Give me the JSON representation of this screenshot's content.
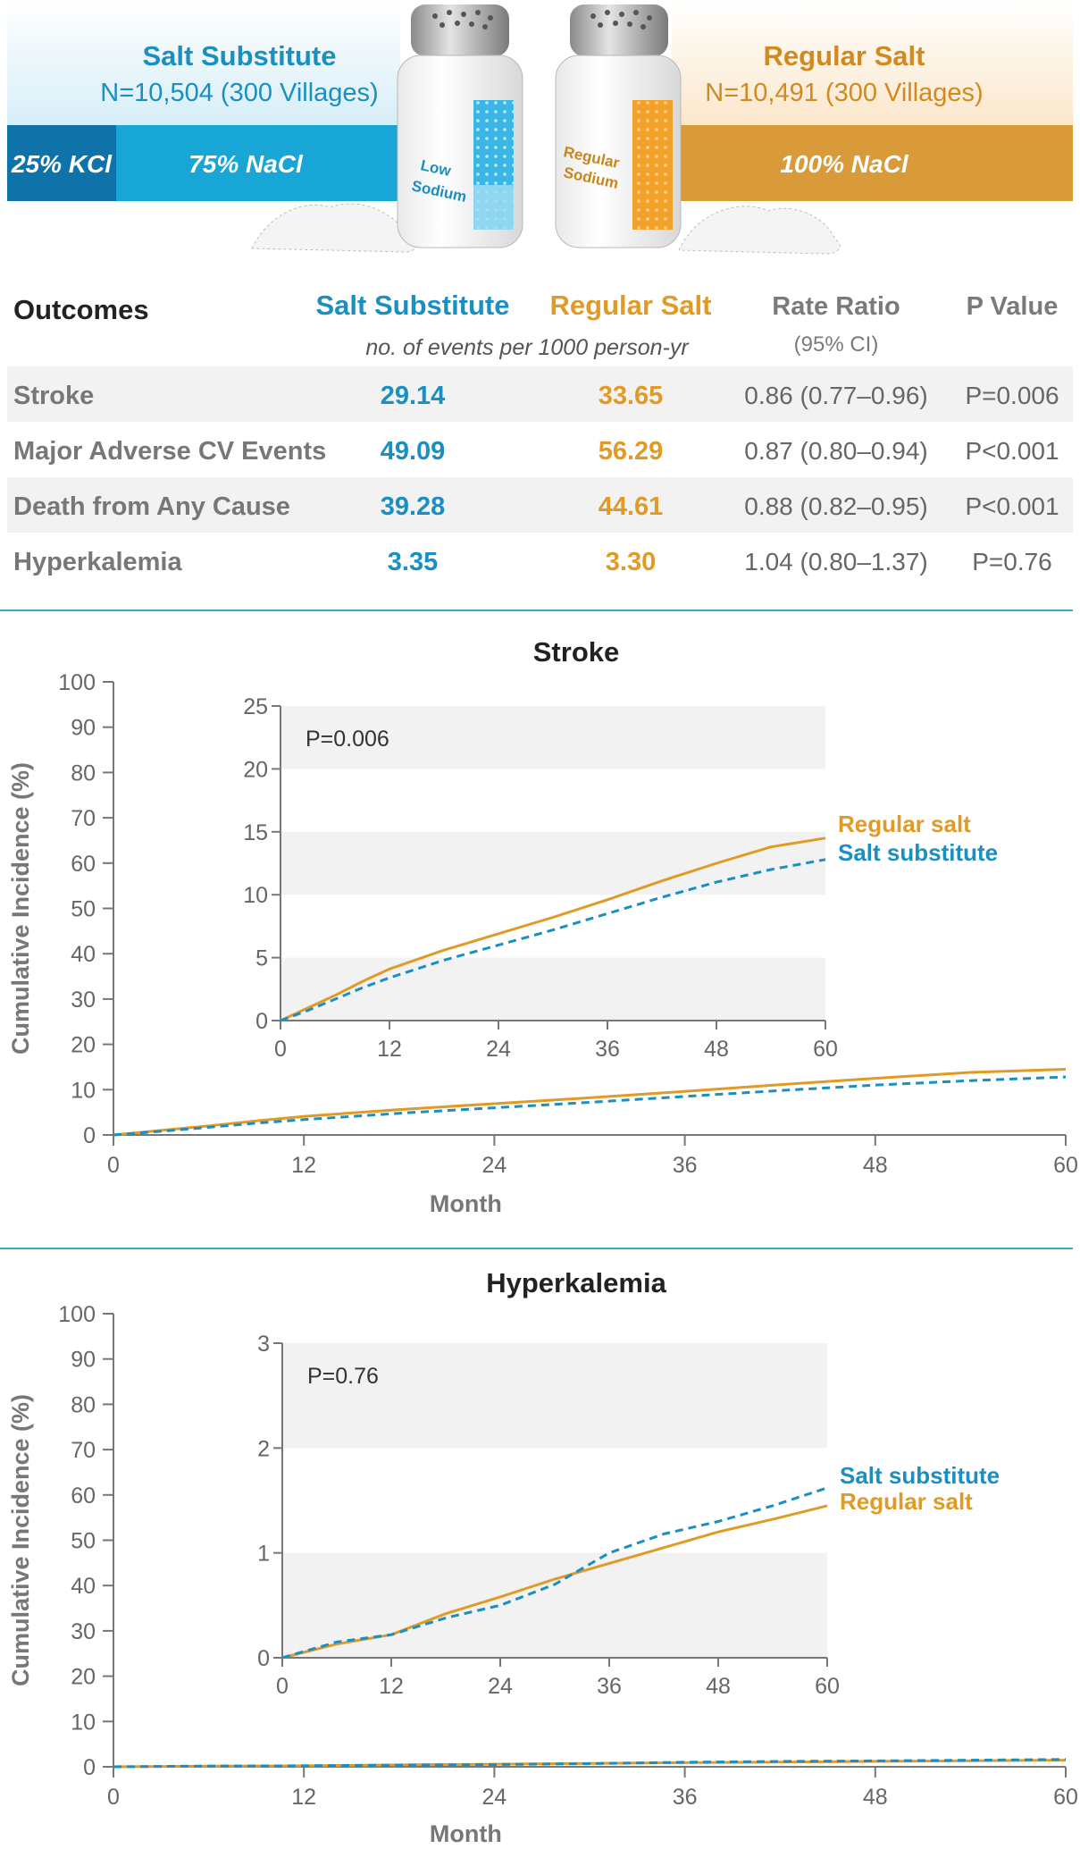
{
  "colors": {
    "salt_substitute": "#1a8fc0",
    "salt_substitute_band": "#17a6d6",
    "kcl_band": "#0f72a8",
    "regular_salt": "#e09b27",
    "regular_salt_band": "#d99a3a",
    "gray_text": "#777777",
    "panel_gray": "#f2f2f2",
    "rule_teal": "#3aa9c8"
  },
  "icons": [
    "salt-shaker-low-sodium",
    "salt-shaker-regular-sodium",
    "salt-pile"
  ],
  "header": {
    "substitute": {
      "title": "Salt Substitute",
      "n": "N=10,504 (300 Villages)",
      "kcl": "25% KCl",
      "nacl": "75% NaCl",
      "shaker_label_1": "Low",
      "shaker_label_2": "Sodium"
    },
    "regular": {
      "title": "Regular Salt",
      "n": "N=10,491 (300 Villages)",
      "nacl": "100% NaCl",
      "shaker_label_1": "Regular",
      "shaker_label_2": "Sodium"
    }
  },
  "table": {
    "headers": {
      "outcomes": "Outcomes",
      "substitute": "Salt Substitute",
      "regular": "Regular Salt",
      "ratio": "Rate Ratio",
      "ratio_sub": "(95% CI)",
      "pvalue": "P Value",
      "units": "no. of events per 1000 person-yr"
    },
    "rows": [
      {
        "outcome": "Stroke",
        "substitute": "29.14",
        "regular": "33.65",
        "ratio": "0.86 (0.77–0.96)",
        "p": "P=0.006"
      },
      {
        "outcome": "Major Adverse CV Events",
        "substitute": "49.09",
        "regular": "56.29",
        "ratio": "0.87 (0.80–0.94)",
        "p": "P<0.001"
      },
      {
        "outcome": "Death from Any Cause",
        "substitute": "39.28",
        "regular": "44.61",
        "ratio": "0.88 (0.82–0.95)",
        "p": "P<0.001"
      },
      {
        "outcome": "Hyperkalemia",
        "substitute": "3.35",
        "regular": "3.30",
        "ratio": "1.04 (0.80–1.37)",
        "p": "P=0.76"
      }
    ]
  },
  "chart_data": [
    {
      "type": "line",
      "title": "Stroke",
      "xlabel": "Month",
      "ylabel": "Cumulative Incidence (%)",
      "xlim": [
        0,
        60
      ],
      "ylim": [
        0,
        100
      ],
      "xticks": [
        0,
        12,
        24,
        36,
        48,
        60
      ],
      "yticks": [
        0,
        10,
        20,
        30,
        40,
        50,
        60,
        70,
        80,
        90,
        100
      ],
      "series": [
        {
          "name": "Regular salt",
          "style": "solid",
          "x": [
            0,
            3,
            6,
            9,
            12,
            18,
            24,
            30,
            36,
            42,
            48,
            54,
            60
          ],
          "y": [
            0,
            1.0,
            2.0,
            3.1,
            4.1,
            5.6,
            6.9,
            8.2,
            9.6,
            11.1,
            12.5,
            13.8,
            14.5
          ]
        },
        {
          "name": "Salt substitute",
          "style": "dashed",
          "x": [
            0,
            3,
            6,
            9,
            12,
            18,
            24,
            30,
            36,
            42,
            48,
            54,
            60
          ],
          "y": [
            0,
            0.8,
            1.7,
            2.6,
            3.4,
            4.8,
            6.0,
            7.2,
            8.5,
            9.8,
            11.0,
            12.0,
            12.8
          ]
        }
      ],
      "inset": {
        "annotation": "P=0.006",
        "xlim": [
          0,
          60
        ],
        "ylim": [
          0,
          25
        ],
        "xticks": [
          0,
          12,
          24,
          36,
          48,
          60
        ],
        "yticks": [
          0,
          5,
          10,
          15,
          20,
          25
        ],
        "label_order": [
          "Regular salt",
          "Salt substitute"
        ]
      }
    },
    {
      "type": "line",
      "title": "Hyperkalemia",
      "xlabel": "Month",
      "ylabel": "Cumulative Incidence (%)",
      "xlim": [
        0,
        60
      ],
      "ylim": [
        0,
        100
      ],
      "xticks": [
        0,
        12,
        24,
        36,
        48,
        60
      ],
      "yticks": [
        0,
        10,
        20,
        30,
        40,
        50,
        60,
        70,
        80,
        90,
        100
      ],
      "series": [
        {
          "name": "Regular salt",
          "style": "solid",
          "x": [
            0,
            6,
            12,
            18,
            24,
            30,
            36,
            42,
            48,
            54,
            60
          ],
          "y": [
            0,
            0.13,
            0.22,
            0.42,
            0.58,
            0.75,
            0.9,
            1.05,
            1.2,
            1.32,
            1.45
          ]
        },
        {
          "name": "Salt substitute",
          "style": "dashed",
          "x": [
            0,
            6,
            12,
            18,
            24,
            30,
            36,
            42,
            48,
            54,
            60
          ],
          "y": [
            0,
            0.15,
            0.22,
            0.38,
            0.5,
            0.7,
            1.0,
            1.18,
            1.3,
            1.45,
            1.62
          ]
        }
      ],
      "inset": {
        "annotation": "P=0.76",
        "xlim": [
          0,
          60
        ],
        "ylim": [
          0,
          3
        ],
        "xticks": [
          0,
          12,
          24,
          36,
          48,
          60
        ],
        "yticks": [
          0,
          1,
          2,
          3
        ],
        "label_order": [
          "Salt substitute",
          "Regular salt"
        ]
      }
    }
  ]
}
